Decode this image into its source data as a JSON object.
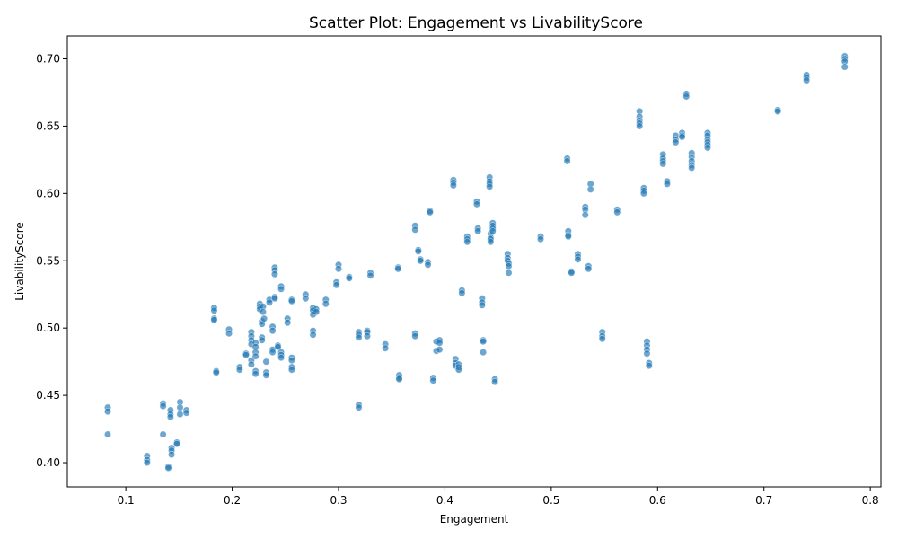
{
  "chart_data": {
    "type": "scatter",
    "title": "Scatter Plot: Engagement vs LivabilityScore",
    "xlabel": "Engagement",
    "ylabel": "LivabilityScore",
    "xlim": [
      0.045,
      0.81
    ],
    "ylim": [
      0.382,
      0.717
    ],
    "xticks": [
      "0.1",
      "0.2",
      "0.3",
      "0.4",
      "0.5",
      "0.6",
      "0.7",
      "0.8"
    ],
    "yticks": [
      "0.40",
      "0.45",
      "0.50",
      "0.55",
      "0.60",
      "0.65",
      "0.70"
    ],
    "grid": false,
    "legend": "none",
    "marker_color": "#1f77b4",
    "points": [
      [
        0.083,
        0.441
      ],
      [
        0.083,
        0.438
      ],
      [
        0.083,
        0.421
      ],
      [
        0.12,
        0.405
      ],
      [
        0.12,
        0.402
      ],
      [
        0.12,
        0.4
      ],
      [
        0.135,
        0.444
      ],
      [
        0.135,
        0.442
      ],
      [
        0.135,
        0.421
      ],
      [
        0.14,
        0.397
      ],
      [
        0.14,
        0.396
      ],
      [
        0.142,
        0.439
      ],
      [
        0.142,
        0.436
      ],
      [
        0.142,
        0.434
      ],
      [
        0.143,
        0.411
      ],
      [
        0.143,
        0.409
      ],
      [
        0.143,
        0.406
      ],
      [
        0.148,
        0.415
      ],
      [
        0.148,
        0.414
      ],
      [
        0.151,
        0.445
      ],
      [
        0.151,
        0.441
      ],
      [
        0.151,
        0.436
      ],
      [
        0.157,
        0.439
      ],
      [
        0.157,
        0.437
      ],
      [
        0.183,
        0.515
      ],
      [
        0.183,
        0.513
      ],
      [
        0.183,
        0.507
      ],
      [
        0.183,
        0.506
      ],
      [
        0.185,
        0.468
      ],
      [
        0.185,
        0.467
      ],
      [
        0.197,
        0.499
      ],
      [
        0.197,
        0.496
      ],
      [
        0.207,
        0.471
      ],
      [
        0.207,
        0.469
      ],
      [
        0.213,
        0.481
      ],
      [
        0.213,
        0.48
      ],
      [
        0.218,
        0.497
      ],
      [
        0.218,
        0.494
      ],
      [
        0.218,
        0.491
      ],
      [
        0.218,
        0.488
      ],
      [
        0.218,
        0.476
      ],
      [
        0.218,
        0.473
      ],
      [
        0.222,
        0.489
      ],
      [
        0.222,
        0.486
      ],
      [
        0.222,
        0.482
      ],
      [
        0.222,
        0.479
      ],
      [
        0.222,
        0.468
      ],
      [
        0.222,
        0.466
      ],
      [
        0.226,
        0.518
      ],
      [
        0.226,
        0.516
      ],
      [
        0.226,
        0.514
      ],
      [
        0.228,
        0.505
      ],
      [
        0.228,
        0.503
      ],
      [
        0.228,
        0.493
      ],
      [
        0.228,
        0.491
      ],
      [
        0.229,
        0.516
      ],
      [
        0.229,
        0.512
      ],
      [
        0.23,
        0.507
      ],
      [
        0.232,
        0.475
      ],
      [
        0.232,
        0.467
      ],
      [
        0.232,
        0.465
      ],
      [
        0.235,
        0.521
      ],
      [
        0.235,
        0.519
      ],
      [
        0.238,
        0.501
      ],
      [
        0.238,
        0.498
      ],
      [
        0.238,
        0.484
      ],
      [
        0.238,
        0.482
      ],
      [
        0.24,
        0.545
      ],
      [
        0.24,
        0.543
      ],
      [
        0.24,
        0.54
      ],
      [
        0.24,
        0.523
      ],
      [
        0.24,
        0.522
      ],
      [
        0.243,
        0.487
      ],
      [
        0.243,
        0.486
      ],
      [
        0.246,
        0.531
      ],
      [
        0.246,
        0.529
      ],
      [
        0.246,
        0.482
      ],
      [
        0.246,
        0.48
      ],
      [
        0.246,
        0.478
      ],
      [
        0.252,
        0.507
      ],
      [
        0.252,
        0.504
      ],
      [
        0.256,
        0.521
      ],
      [
        0.256,
        0.52
      ],
      [
        0.256,
        0.478
      ],
      [
        0.256,
        0.476
      ],
      [
        0.256,
        0.471
      ],
      [
        0.256,
        0.469
      ],
      [
        0.269,
        0.525
      ],
      [
        0.269,
        0.522
      ],
      [
        0.276,
        0.515
      ],
      [
        0.276,
        0.513
      ],
      [
        0.276,
        0.51
      ],
      [
        0.276,
        0.498
      ],
      [
        0.276,
        0.495
      ],
      [
        0.279,
        0.514
      ],
      [
        0.279,
        0.512
      ],
      [
        0.288,
        0.521
      ],
      [
        0.288,
        0.518
      ],
      [
        0.298,
        0.534
      ],
      [
        0.298,
        0.532
      ],
      [
        0.3,
        0.547
      ],
      [
        0.3,
        0.544
      ],
      [
        0.31,
        0.538
      ],
      [
        0.31,
        0.537
      ],
      [
        0.319,
        0.497
      ],
      [
        0.319,
        0.495
      ],
      [
        0.319,
        0.493
      ],
      [
        0.319,
        0.443
      ],
      [
        0.319,
        0.441
      ],
      [
        0.327,
        0.498
      ],
      [
        0.327,
        0.497
      ],
      [
        0.327,
        0.494
      ],
      [
        0.33,
        0.541
      ],
      [
        0.33,
        0.539
      ],
      [
        0.344,
        0.488
      ],
      [
        0.344,
        0.485
      ],
      [
        0.356,
        0.545
      ],
      [
        0.356,
        0.544
      ],
      [
        0.357,
        0.465
      ],
      [
        0.357,
        0.463
      ],
      [
        0.357,
        0.462
      ],
      [
        0.372,
        0.576
      ],
      [
        0.372,
        0.573
      ],
      [
        0.372,
        0.496
      ],
      [
        0.372,
        0.494
      ],
      [
        0.375,
        0.558
      ],
      [
        0.375,
        0.557
      ],
      [
        0.377,
        0.551
      ],
      [
        0.377,
        0.55
      ],
      [
        0.384,
        0.549
      ],
      [
        0.384,
        0.547
      ],
      [
        0.386,
        0.587
      ],
      [
        0.386,
        0.586
      ],
      [
        0.389,
        0.463
      ],
      [
        0.389,
        0.461
      ],
      [
        0.392,
        0.49
      ],
      [
        0.392,
        0.483
      ],
      [
        0.395,
        0.491
      ],
      [
        0.395,
        0.489
      ],
      [
        0.395,
        0.484
      ],
      [
        0.408,
        0.61
      ],
      [
        0.408,
        0.608
      ],
      [
        0.408,
        0.606
      ],
      [
        0.41,
        0.477
      ],
      [
        0.41,
        0.474
      ],
      [
        0.41,
        0.472
      ],
      [
        0.413,
        0.473
      ],
      [
        0.413,
        0.471
      ],
      [
        0.413,
        0.469
      ],
      [
        0.416,
        0.528
      ],
      [
        0.416,
        0.526
      ],
      [
        0.421,
        0.568
      ],
      [
        0.421,
        0.566
      ],
      [
        0.421,
        0.564
      ],
      [
        0.43,
        0.594
      ],
      [
        0.43,
        0.592
      ],
      [
        0.431,
        0.574
      ],
      [
        0.431,
        0.572
      ],
      [
        0.435,
        0.522
      ],
      [
        0.435,
        0.519
      ],
      [
        0.435,
        0.517
      ],
      [
        0.436,
        0.491
      ],
      [
        0.436,
        0.49
      ],
      [
        0.436,
        0.482
      ],
      [
        0.442,
        0.612
      ],
      [
        0.442,
        0.609
      ],
      [
        0.442,
        0.607
      ],
      [
        0.442,
        0.605
      ],
      [
        0.443,
        0.57
      ],
      [
        0.443,
        0.567
      ],
      [
        0.443,
        0.566
      ],
      [
        0.443,
        0.564
      ],
      [
        0.445,
        0.578
      ],
      [
        0.445,
        0.576
      ],
      [
        0.445,
        0.574
      ],
      [
        0.445,
        0.572
      ],
      [
        0.447,
        0.462
      ],
      [
        0.447,
        0.46
      ],
      [
        0.459,
        0.555
      ],
      [
        0.459,
        0.552
      ],
      [
        0.459,
        0.55
      ],
      [
        0.46,
        0.548
      ],
      [
        0.46,
        0.546
      ],
      [
        0.46,
        0.541
      ],
      [
        0.49,
        0.568
      ],
      [
        0.49,
        0.566
      ],
      [
        0.515,
        0.626
      ],
      [
        0.515,
        0.624
      ],
      [
        0.516,
        0.572
      ],
      [
        0.516,
        0.569
      ],
      [
        0.516,
        0.568
      ],
      [
        0.519,
        0.542
      ],
      [
        0.519,
        0.541
      ],
      [
        0.525,
        0.555
      ],
      [
        0.525,
        0.553
      ],
      [
        0.525,
        0.551
      ],
      [
        0.532,
        0.59
      ],
      [
        0.532,
        0.588
      ],
      [
        0.532,
        0.584
      ],
      [
        0.535,
        0.546
      ],
      [
        0.535,
        0.544
      ],
      [
        0.537,
        0.607
      ],
      [
        0.537,
        0.603
      ],
      [
        0.548,
        0.497
      ],
      [
        0.548,
        0.494
      ],
      [
        0.548,
        0.492
      ],
      [
        0.562,
        0.588
      ],
      [
        0.562,
        0.586
      ],
      [
        0.583,
        0.661
      ],
      [
        0.583,
        0.657
      ],
      [
        0.583,
        0.654
      ],
      [
        0.583,
        0.652
      ],
      [
        0.583,
        0.65
      ],
      [
        0.587,
        0.604
      ],
      [
        0.587,
        0.602
      ],
      [
        0.587,
        0.6
      ],
      [
        0.59,
        0.49
      ],
      [
        0.59,
        0.487
      ],
      [
        0.59,
        0.484
      ],
      [
        0.59,
        0.481
      ],
      [
        0.592,
        0.474
      ],
      [
        0.592,
        0.472
      ],
      [
        0.605,
        0.629
      ],
      [
        0.605,
        0.626
      ],
      [
        0.605,
        0.624
      ],
      [
        0.605,
        0.622
      ],
      [
        0.609,
        0.609
      ],
      [
        0.609,
        0.607
      ],
      [
        0.617,
        0.643
      ],
      [
        0.617,
        0.64
      ],
      [
        0.617,
        0.638
      ],
      [
        0.623,
        0.645
      ],
      [
        0.623,
        0.643
      ],
      [
        0.623,
        0.642
      ],
      [
        0.627,
        0.674
      ],
      [
        0.627,
        0.672
      ],
      [
        0.632,
        0.63
      ],
      [
        0.632,
        0.627
      ],
      [
        0.632,
        0.624
      ],
      [
        0.632,
        0.621
      ],
      [
        0.632,
        0.619
      ],
      [
        0.647,
        0.645
      ],
      [
        0.647,
        0.643
      ],
      [
        0.647,
        0.64
      ],
      [
        0.647,
        0.638
      ],
      [
        0.647,
        0.636
      ],
      [
        0.647,
        0.634
      ],
      [
        0.713,
        0.662
      ],
      [
        0.713,
        0.661
      ],
      [
        0.74,
        0.688
      ],
      [
        0.74,
        0.686
      ],
      [
        0.74,
        0.684
      ],
      [
        0.776,
        0.702
      ],
      [
        0.776,
        0.7
      ],
      [
        0.776,
        0.698
      ],
      [
        0.776,
        0.694
      ]
    ]
  }
}
